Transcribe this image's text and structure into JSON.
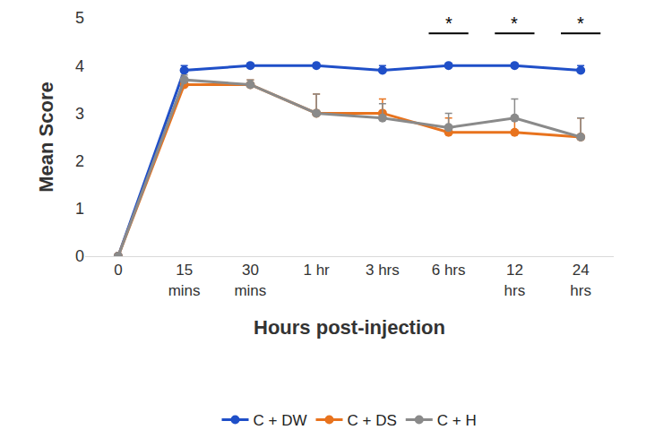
{
  "chart_data": {
    "type": "line",
    "x_label": "Hours post-injection",
    "y_label": "Mean Score",
    "categories": [
      "0",
      "15\nmins",
      "30\nmins",
      "1 hr",
      "3 hrs",
      "6 hrs",
      "12\nhrs",
      "24\nhrs"
    ],
    "ylim": [
      0,
      5
    ],
    "yticks": [
      0,
      1,
      2,
      3,
      4,
      5
    ],
    "grid": false,
    "legend": "bottom",
    "marker": "circle",
    "series": [
      {
        "name": "C + DW",
        "color": "#1f4fc8",
        "values": [
          0,
          3.9,
          4.0,
          4.0,
          3.9,
          4.0,
          4.0,
          3.9
        ],
        "error": [
          0,
          0.1,
          0.05,
          0.05,
          0.1,
          0.05,
          0.05,
          0.1
        ]
      },
      {
        "name": "C + DS",
        "color": "#e8731e",
        "values": [
          0,
          3.6,
          3.6,
          3.0,
          3.0,
          2.6,
          2.6,
          2.5
        ],
        "error": [
          0,
          0.1,
          0.1,
          0.4,
          0.3,
          0.3,
          0.3,
          0.4
        ]
      },
      {
        "name": "C + H",
        "color": "#8a8a8a",
        "values": [
          0,
          3.7,
          3.6,
          3.0,
          2.9,
          2.7,
          2.9,
          2.5
        ],
        "error": [
          0,
          0.1,
          0.1,
          0.4,
          0.3,
          0.3,
          0.4,
          0.4
        ]
      }
    ],
    "annotations": [
      {
        "category": "6 hrs",
        "text": "*"
      },
      {
        "category": "12\nhrs",
        "text": "*"
      },
      {
        "category": "24\nhrs",
        "text": "*"
      }
    ]
  }
}
